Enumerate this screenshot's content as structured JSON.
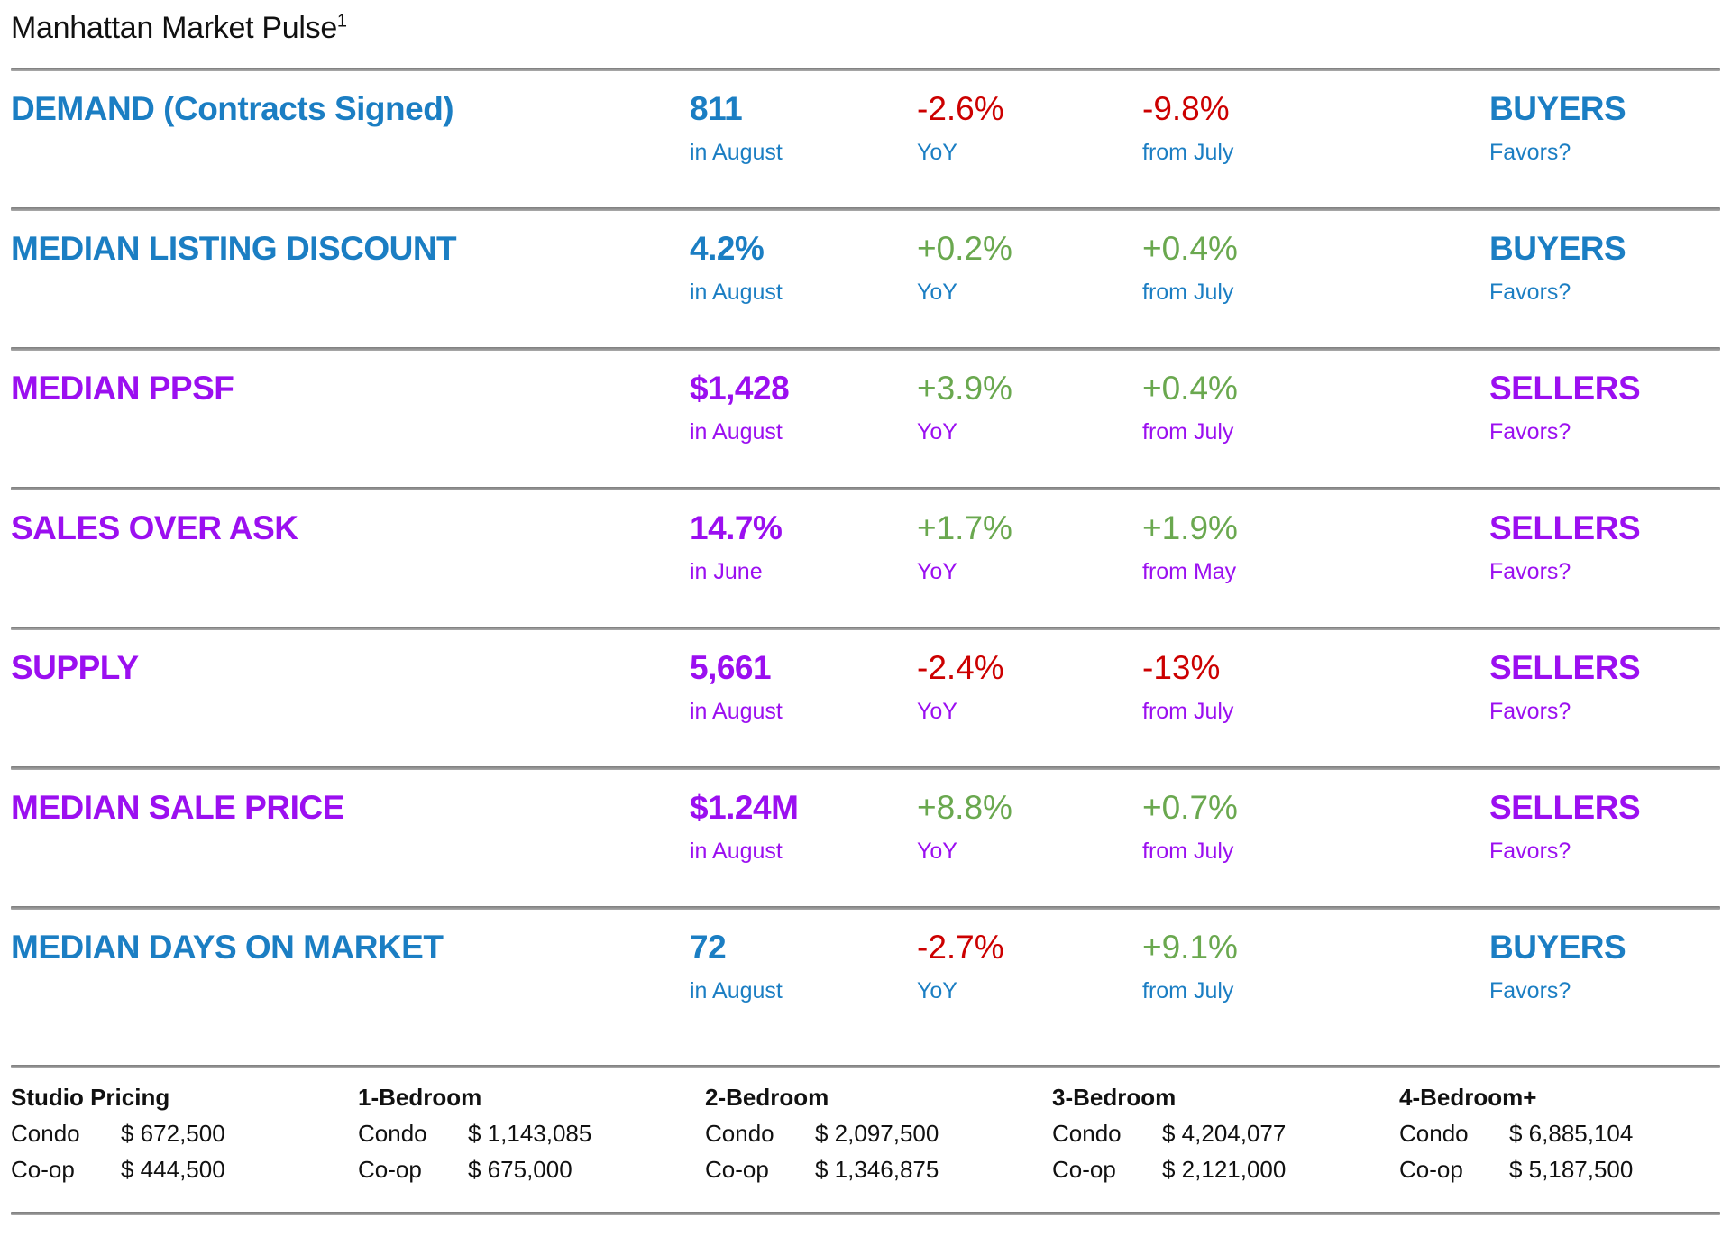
{
  "page": {
    "title": "Manhattan Market Pulse",
    "title_superscript": "1"
  },
  "colors": {
    "buyers_blue": "#1B7EC3",
    "sellers_purple": "#9B0FF0",
    "positive_green": "#6AA84F",
    "negative_red": "#CC0000",
    "divider_gray": "#8F8F8F"
  },
  "metrics": {
    "rows": [
      {
        "label": "DEMAND (Contracts Signed)",
        "theme": "blue",
        "value": "811",
        "value_caption": "in August",
        "yoy": "-2.6%",
        "yoy_tone": "red",
        "yoy_caption": "YoY",
        "change": "-9.8%",
        "change_tone": "red",
        "change_caption": "from July",
        "favors": "BUYERS",
        "favors_caption": "Favors?"
      },
      {
        "label": "MEDIAN LISTING DISCOUNT",
        "theme": "blue",
        "value": "4.2%",
        "value_caption": "in August",
        "yoy": "+0.2%",
        "yoy_tone": "green",
        "yoy_caption": "YoY",
        "change": "+0.4%",
        "change_tone": "green",
        "change_caption": "from July",
        "favors": "BUYERS",
        "favors_caption": "Favors?"
      },
      {
        "label": "MEDIAN PPSF",
        "theme": "purple",
        "value": "$1,428",
        "value_caption": "in August",
        "yoy": "+3.9%",
        "yoy_tone": "green",
        "yoy_caption": "YoY",
        "change": "+0.4%",
        "change_tone": "green",
        "change_caption": "from July",
        "favors": "SELLERS",
        "favors_caption": "Favors?"
      },
      {
        "label": "SALES OVER ASK",
        "theme": "purple",
        "value": "14.7%",
        "value_caption": "in June",
        "yoy": "+1.7%",
        "yoy_tone": "green",
        "yoy_caption": "YoY",
        "change": "+1.9%",
        "change_tone": "green",
        "change_caption": "from May",
        "favors": "SELLERS",
        "favors_caption": "Favors?"
      },
      {
        "label": "SUPPLY",
        "theme": "purple",
        "value": "5,661",
        "value_caption": "in August",
        "yoy": "-2.4%",
        "yoy_tone": "red",
        "yoy_caption": "YoY",
        "change": "-13%",
        "change_tone": "red",
        "change_caption": "from July",
        "favors": "SELLERS",
        "favors_caption": "Favors?"
      },
      {
        "label": "MEDIAN SALE PRICE",
        "theme": "purple",
        "value": "$1.24M",
        "value_caption": "in August",
        "yoy": "+8.8%",
        "yoy_tone": "green",
        "yoy_caption": "YoY",
        "change": "+0.7%",
        "change_tone": "green",
        "change_caption": "from July",
        "favors": "SELLERS",
        "favors_caption": "Favors?"
      },
      {
        "label": "MEDIAN DAYS ON MARKET",
        "theme": "blue",
        "value": "72",
        "value_caption": "in August",
        "yoy": "-2.7%",
        "yoy_tone": "red",
        "yoy_caption": "YoY",
        "change": "+9.1%",
        "change_tone": "green",
        "change_caption": "from July",
        "favors": "BUYERS",
        "favors_caption": "Favors?"
      }
    ]
  },
  "pricing": {
    "groups": [
      {
        "header": "Studio Pricing",
        "condo_label": "Condo",
        "condo_price": "$ 672,500",
        "coop_label": "Co-op",
        "coop_price": "$ 444,500"
      },
      {
        "header": "1-Bedroom",
        "condo_label": "Condo",
        "condo_price": "$ 1,143,085",
        "coop_label": "Co-op",
        "coop_price": "$ 675,000"
      },
      {
        "header": "2-Bedroom",
        "condo_label": "Condo",
        "condo_price": "$ 2,097,500",
        "coop_label": "Co-op",
        "coop_price": "$ 1,346,875"
      },
      {
        "header": "3-Bedroom",
        "condo_label": "Condo",
        "condo_price": "$ 4,204,077",
        "coop_label": "Co-op",
        "coop_price": "$ 2,121,000"
      },
      {
        "header": "4-Bedroom+",
        "condo_label": "Condo",
        "condo_price": "$ 6,885,104",
        "coop_label": "Co-op",
        "coop_price": "$ 5,187,500"
      }
    ]
  }
}
